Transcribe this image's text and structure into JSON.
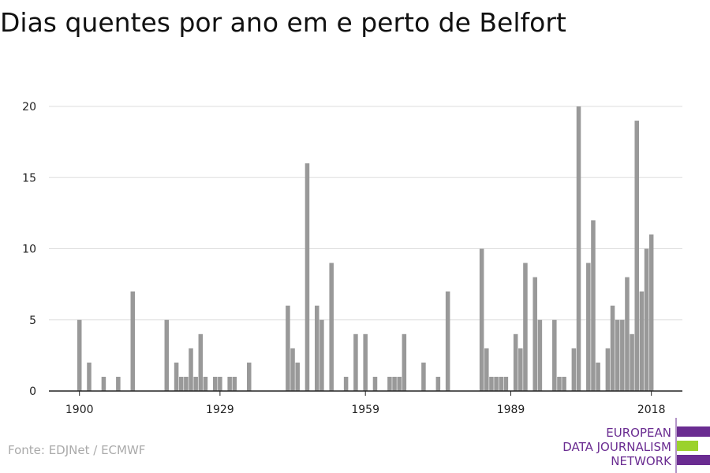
{
  "chart_data": {
    "type": "bar",
    "title": "Dias quentes por ano em e perto de Belfort",
    "source": "Fonte: EDJNet / ECMWF",
    "logo": [
      "EUROPEAN",
      "DATA JOURNALISM",
      "NETWORK"
    ],
    "color": "#999999",
    "grid": true,
    "x": [
      1900,
      1902,
      1905,
      1908,
      1911,
      1918,
      1920,
      1921,
      1922,
      1923,
      1924,
      1925,
      1926,
      1928,
      1929,
      1931,
      1932,
      1935,
      1943,
      1944,
      1945,
      1947,
      1949,
      1950,
      1952,
      1955,
      1957,
      1959,
      1961,
      1964,
      1965,
      1966,
      1967,
      1971,
      1974,
      1976,
      1983,
      1984,
      1985,
      1986,
      1987,
      1988,
      1990,
      1991,
      1992,
      1994,
      1995,
      1998,
      1999,
      2000,
      2002,
      2003,
      2005,
      2006,
      2007,
      2009,
      2010,
      2011,
      2012,
      2013,
      2014,
      2015,
      2016,
      2017,
      2018
    ],
    "values": [
      5,
      2,
      1,
      1,
      7,
      5,
      2,
      1,
      1,
      3,
      1,
      4,
      1,
      1,
      1,
      1,
      1,
      2,
      6,
      3,
      2,
      16,
      6,
      5,
      9,
      1,
      4,
      4,
      1,
      1,
      1,
      1,
      4,
      2,
      1,
      7,
      10,
      3,
      1,
      1,
      1,
      1,
      4,
      3,
      9,
      8,
      5,
      5,
      1,
      1,
      3,
      20,
      9,
      12,
      2,
      3,
      6,
      5,
      5,
      8,
      4,
      19,
      7,
      10,
      11
    ],
    "xlim": [
      1893.7,
      2024.4
    ],
    "xticks": [
      1900,
      1929,
      1959,
      1989,
      2018
    ],
    "ylim": [
      0,
      20
    ],
    "yticks": [
      0,
      5,
      10,
      15,
      20
    ]
  }
}
